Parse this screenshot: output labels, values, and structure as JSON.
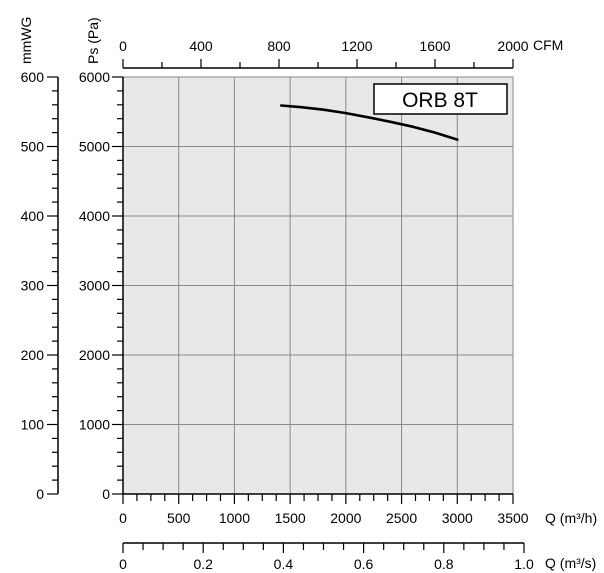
{
  "chart_data": {
    "type": "line",
    "title": "",
    "model_label": "ORB 8T",
    "grid": true,
    "plot_background": "#e8e8e8",
    "line_color": "#000000",
    "axes": {
      "q_m3h": {
        "label": "Q (m³/h)",
        "range": [
          0,
          3500
        ],
        "ticks": [
          "0",
          "500",
          "1000",
          "1500",
          "2000",
          "2500",
          "3000",
          "3500"
        ]
      },
      "q_m3s": {
        "label": "Q (m³/s)",
        "range": [
          0,
          1.0
        ],
        "ticks": [
          "0",
          "0.2",
          "0.4",
          "0.6",
          "0.8",
          "1.0"
        ]
      },
      "cfm": {
        "label": "CFM",
        "range": [
          0,
          2000
        ],
        "ticks": [
          "0",
          "400",
          "800",
          "1200",
          "1600",
          "2000"
        ]
      },
      "ps_pa": {
        "label": "Ps (Pa)",
        "range": [
          0,
          6000
        ],
        "ticks": [
          "0",
          "1000",
          "2000",
          "3000",
          "4000",
          "5000",
          "6000"
        ]
      },
      "mmwg": {
        "label": "mmWG",
        "range": [
          0,
          600
        ],
        "ticks": [
          "0",
          "100",
          "200",
          "300",
          "400",
          "500",
          "600"
        ]
      }
    },
    "series": [
      {
        "x": [
          1420,
          1600,
          1800,
          2000,
          2200,
          2400,
          2600,
          2800,
          3000
        ],
        "y": [
          5590,
          5565,
          5530,
          5480,
          5420,
          5355,
          5285,
          5200,
          5100
        ]
      }
    ]
  }
}
